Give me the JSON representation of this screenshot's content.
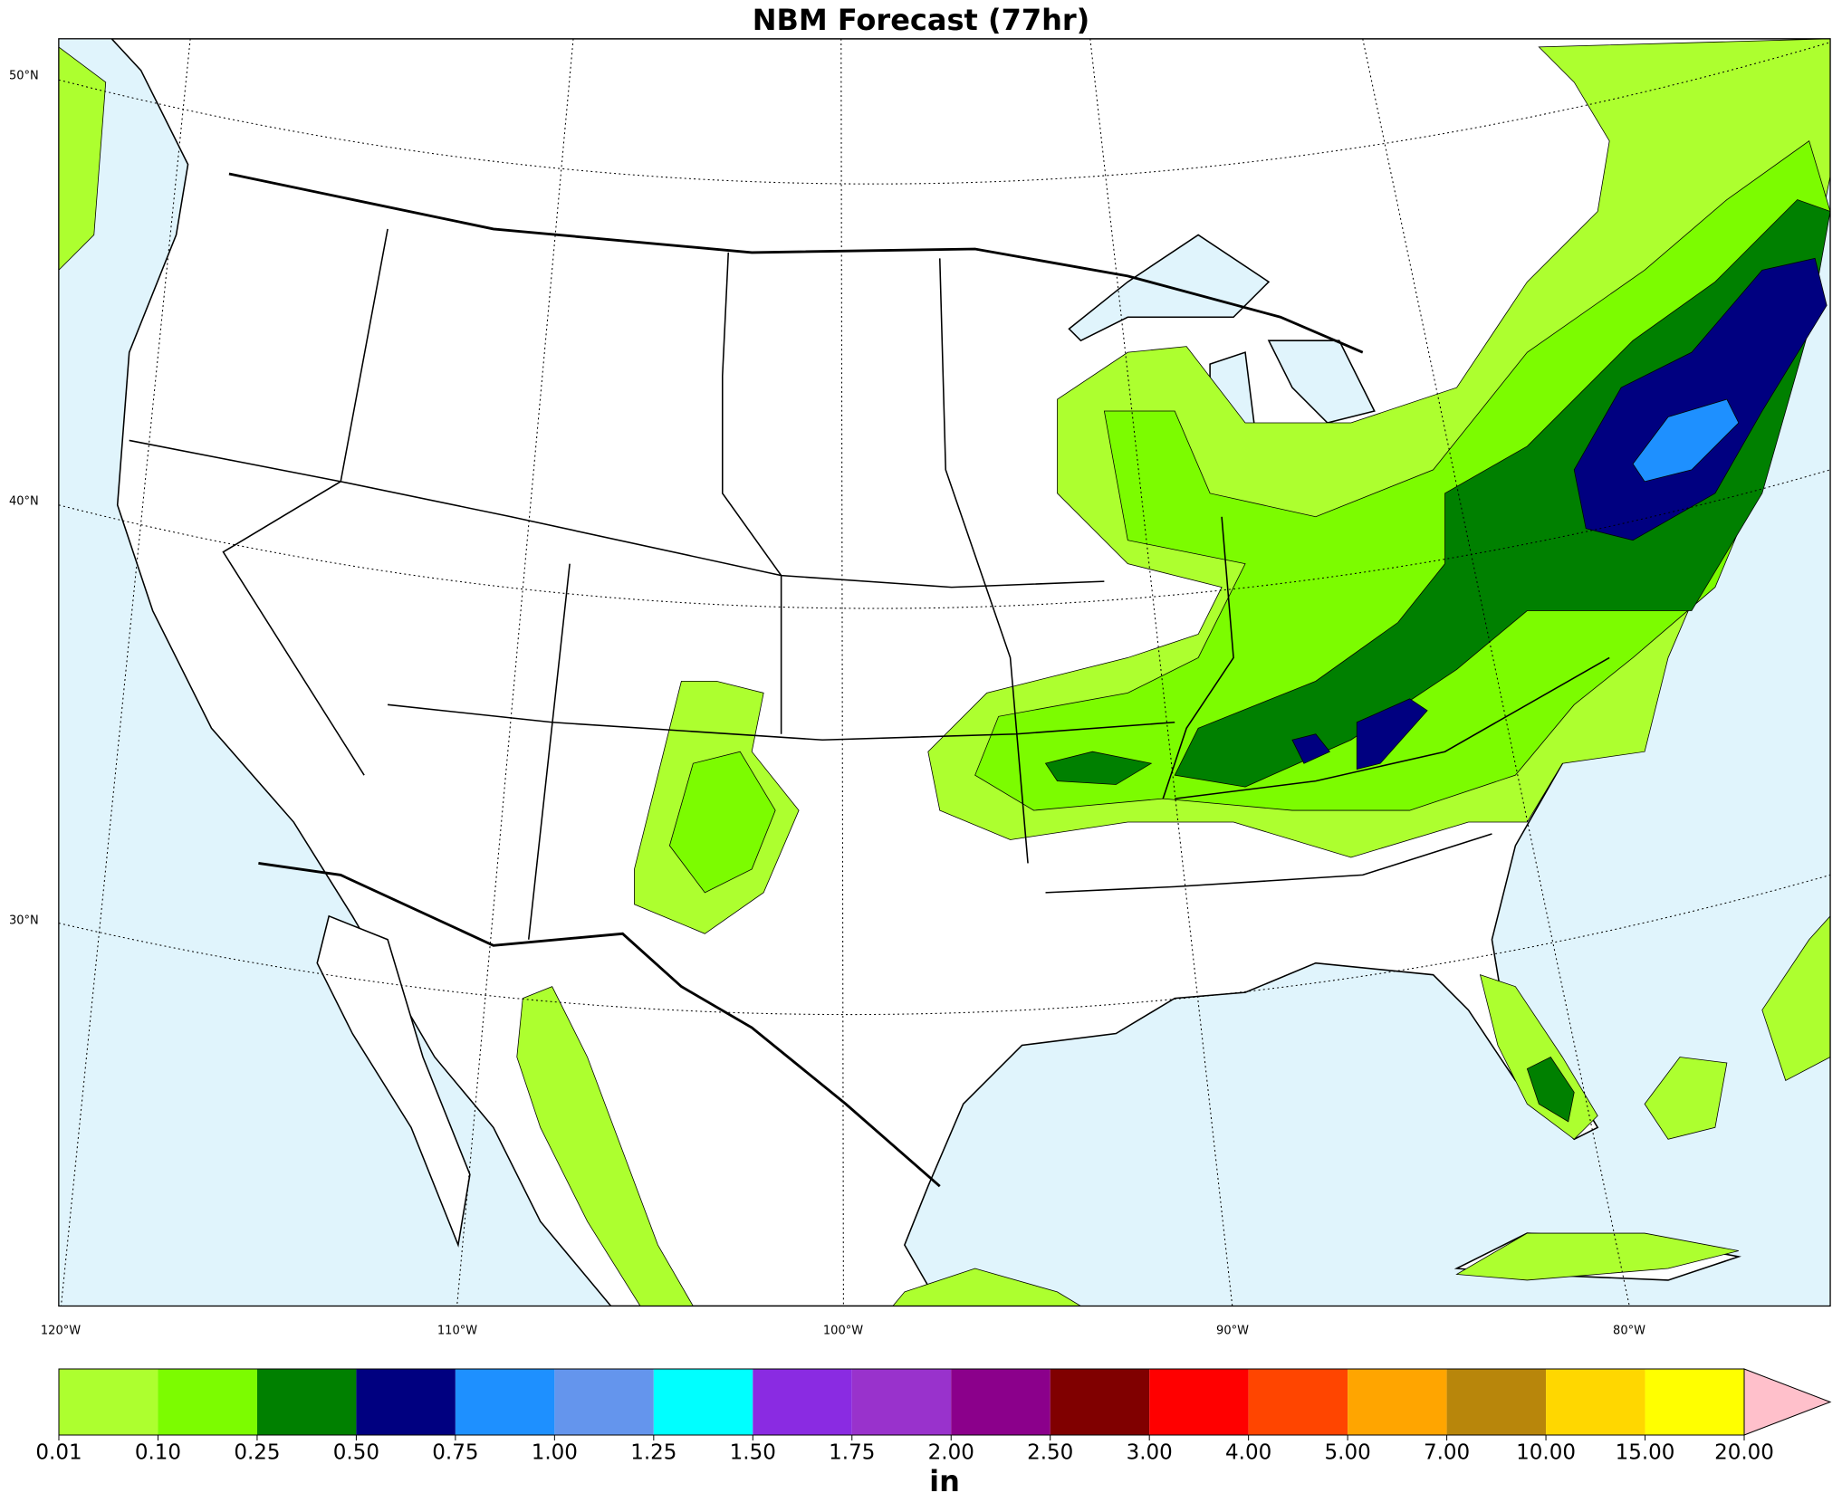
{
  "title": "NBM Forecast (77hr)",
  "latitude_labels": [
    "50°N",
    "40°N",
    "30°N"
  ],
  "longitude_labels": [
    "120°W",
    "110°W",
    "100°W",
    "90°W",
    "80°W"
  ],
  "colorbar": {
    "label": "in",
    "levels": [
      {
        "value": 0.01,
        "label": "0.01"
      },
      {
        "value": 0.1,
        "label": "0.10"
      },
      {
        "value": 0.25,
        "label": "0.25"
      },
      {
        "value": 0.5,
        "label": "0.50"
      },
      {
        "value": 0.75,
        "label": "0.75"
      },
      {
        "value": 1,
        "label": "1.00"
      },
      {
        "value": 1.25,
        "label": "1.25"
      },
      {
        "value": 1.5,
        "label": "1.50"
      },
      {
        "value": 1.75,
        "label": "1.75"
      },
      {
        "value": 2,
        "label": "2.00"
      },
      {
        "value": 2.5,
        "label": "2.50"
      },
      {
        "value": 3,
        "label": "3.00"
      },
      {
        "value": 4,
        "label": "4.00"
      },
      {
        "value": 5,
        "label": "5.00"
      },
      {
        "value": 7,
        "label": "7.00"
      },
      {
        "value": 10,
        "label": "10.00"
      },
      {
        "value": 15,
        "label": "15.00"
      },
      {
        "value": 20,
        "label": "20.00"
      }
    ],
    "colors": [
      "#adff2f",
      "#7cfc00",
      "#008000",
      "#000080",
      "#1e90ff",
      "#6495ed",
      "#00ffff",
      "#8a2be2",
      "#9932cc",
      "#8b008b",
      "#800000",
      "#ff0000",
      "#ff4500",
      "#ffa500",
      "#b8860b",
      "#ffd700",
      "#ffff00"
    ],
    "extend_color": "#ffc0cb"
  }
}
